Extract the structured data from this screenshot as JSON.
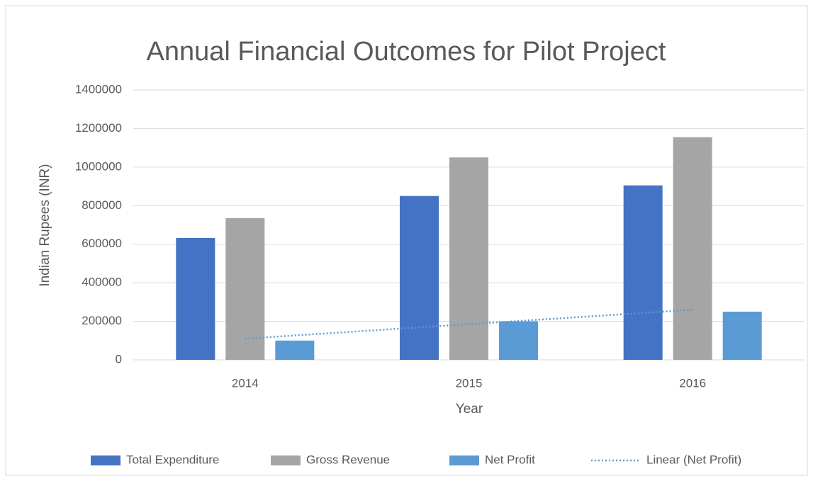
{
  "chart_data": {
    "type": "bar",
    "title": "Annual Financial Outcomes for Pilot Project",
    "x_label": "Year",
    "y_label": "Indian Rupees (INR)",
    "categories": [
      "2014",
      "2015",
      "2016"
    ],
    "series": [
      {
        "name": "Total Expenditure",
        "color": "#4472c4",
        "values": [
          632000,
          850000,
          905000
        ]
      },
      {
        "name": "Gross Revenue",
        "color": "#a5a5a5",
        "values": [
          735000,
          1050000,
          1155000
        ]
      },
      {
        "name": "Net Profit",
        "color": "#5b9bd5",
        "values": [
          100000,
          200000,
          250000
        ]
      }
    ],
    "trendline": {
      "name": "Linear (Net Profit)",
      "color": "#5b9bd5",
      "values": [
        110000,
        185000,
        260000
      ]
    },
    "ylim": [
      0,
      1400000
    ],
    "yticks": [
      0,
      200000,
      400000,
      600000,
      800000,
      1000000,
      1200000,
      1400000
    ],
    "grid": true,
    "legend": "bottom"
  }
}
